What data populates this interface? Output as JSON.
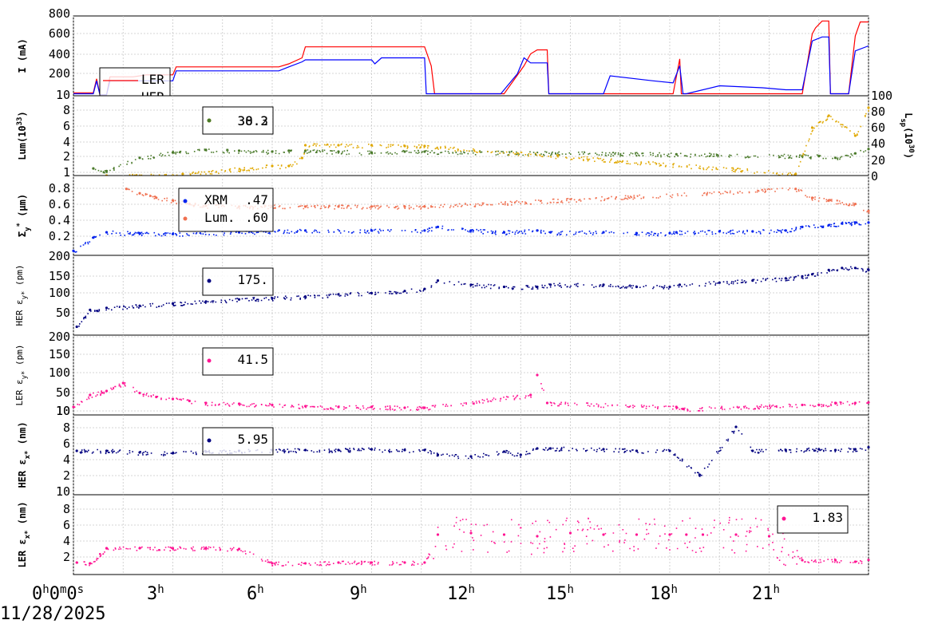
{
  "date_label": "11/28/2025",
  "x_tick_labels": [
    {
      "pre": "0",
      "sup": "h",
      "mid": "0",
      "sup2": "m",
      "mid2": "0",
      "sup3": "s"
    },
    {
      "pre": "3",
      "sup": "h"
    },
    {
      "pre": "6",
      "sup": "h"
    },
    {
      "pre": "9",
      "sup": "h"
    },
    {
      "pre": "12",
      "sup": "h"
    },
    {
      "pre": "15",
      "sup": "h"
    },
    {
      "pre": "18",
      "sup": "h"
    },
    {
      "pre": "21",
      "sup": "h"
    }
  ],
  "colors": {
    "ler": "#ff0000",
    "her": "#0000ff",
    "lum": "#4a7a2a",
    "lsp": "#e0a800",
    "xrm": "#0022ee",
    "lum_size": "#f07050",
    "her_emit": "#000080",
    "ler_emit": "#ff1493"
  },
  "panels": [
    {
      "id": "current",
      "ylabel": "I (mA)",
      "yticks": [
        "200",
        "400",
        "600",
        "800"
      ],
      "legend": [
        {
          "label": "LER",
          "color": "#ff0000"
        },
        {
          "label": "HER",
          "color": "#0000ff"
        }
      ]
    },
    {
      "id": "lum",
      "ylabel": "Lum(10",
      "ylabel_sup": "33",
      "ylabel_end": ")",
      "yticks": [
        "1",
        "2",
        "4",
        "6",
        "8",
        "10"
      ],
      "y2label": "L",
      "y2label_sub": "sp",
      "y2label_mid": "(10",
      "y2label_sup": "30",
      "y2label_end": ")",
      "y2ticks": [
        "0",
        "20",
        "40",
        "60",
        "80",
        "100"
      ],
      "legend": [
        {
          "label": "38.2",
          "color": "#e0a800"
        },
        {
          "label": "30.3",
          "color": "#4a7a2a"
        }
      ]
    },
    {
      "id": "size",
      "ylabel": "Σ",
      "ylabel_sub": "y",
      "ylabel_sup": "*",
      "ylabel_end": " (μm)",
      "yticks": [
        "0.2",
        "0.4",
        "0.6",
        "0.8"
      ],
      "legend": [
        {
          "label": "XRM",
          "value": ".47",
          "color": "#0022ee"
        },
        {
          "label": "Lum.",
          "value": ".60",
          "color": "#f07050"
        }
      ]
    },
    {
      "id": "her_ey",
      "ylabel": "HER ε",
      "ylabel_sub": "y*",
      "ylabel_end": " (pm)",
      "yticks": [
        "50",
        "100",
        "150",
        "200"
      ],
      "legend": [
        {
          "label": "175.",
          "color": "#000080"
        }
      ]
    },
    {
      "id": "ler_ey",
      "ylabel": "LER ε",
      "ylabel_sub": "y*",
      "ylabel_end": " (pm)",
      "yticks": [
        "10",
        "50",
        "100",
        "150",
        "200"
      ],
      "legend": [
        {
          "label": "41.5",
          "color": "#ff1493"
        }
      ]
    },
    {
      "id": "her_ex",
      "ylabel": "HER ε",
      "ylabel_sub": "x*",
      "ylabel_end": " (nm)",
      "yticks": [
        "2",
        "4",
        "6",
        "8",
        "10"
      ],
      "legend": [
        {
          "label": "5.95",
          "color": "#000080"
        }
      ]
    },
    {
      "id": "ler_ex",
      "ylabel": "LER ε",
      "ylabel_sub": "x*",
      "ylabel_end": " (nm)",
      "yticks": [
        "2",
        "4",
        "6",
        "8",
        "10"
      ],
      "legend": [
        {
          "label": "1.83",
          "color": "#ff1493"
        }
      ]
    }
  ],
  "chart_data": [
    {
      "type": "line",
      "title": "",
      "ylabel": "I (mA)",
      "x_unit": "hours",
      "xlim": [
        0,
        24
      ],
      "ylim": [
        0,
        800
      ],
      "series": [
        {
          "name": "LER",
          "color": "#ff0000",
          "x": [
            0,
            0.6,
            0.7,
            0.8,
            1.0,
            1.1,
            1.8,
            2.2,
            3.0,
            3.1,
            6.2,
            6.5,
            6.9,
            7.0,
            10.6,
            10.8,
            10.9,
            12.9,
            13.0,
            13.6,
            13.8,
            14.0,
            14.3,
            14.35,
            18.1,
            18.3,
            18.35,
            22.0,
            22.3,
            22.4,
            22.6,
            22.8,
            22.85,
            23.4,
            23.6,
            23.75,
            24
          ],
          "y": [
            30,
            30,
            170,
            10,
            10,
            190,
            190,
            210,
            210,
            290,
            290,
            320,
            380,
            490,
            490,
            300,
            20,
            20,
            20,
            300,
            420,
            460,
            460,
            20,
            20,
            370,
            20,
            20,
            620,
            680,
            750,
            750,
            20,
            20,
            600,
            740,
            740
          ]
        },
        {
          "name": "HER",
          "color": "#0000ff",
          "x": [
            0,
            0.6,
            0.7,
            0.8,
            1.0,
            1.1,
            3.0,
            3.1,
            6.2,
            6.5,
            6.9,
            7.0,
            9.0,
            9.1,
            9.3,
            10.6,
            10.65,
            12.9,
            13.4,
            13.6,
            13.8,
            14.3,
            14.35,
            16.0,
            16.2,
            17.5,
            18.1,
            18.3,
            18.4,
            18.5,
            19.5,
            20.8,
            21.5,
            22.0,
            22.3,
            22.6,
            22.8,
            22.85,
            23.4,
            23.6,
            24
          ],
          "y": [
            20,
            20,
            150,
            10,
            10,
            150,
            150,
            250,
            250,
            290,
            340,
            360,
            360,
            320,
            380,
            380,
            20,
            20,
            220,
            380,
            330,
            330,
            20,
            20,
            200,
            150,
            130,
            300,
            20,
            20,
            100,
            80,
            60,
            60,
            550,
            590,
            590,
            20,
            20,
            450,
            500
          ]
        }
      ]
    },
    {
      "type": "scatter",
      "title": "",
      "ylabel": "Lum(10^33)",
      "y2label": "Lsp(10^30)",
      "xlim": [
        0,
        24
      ],
      "ylim": [
        1,
        10
      ],
      "y2lim": [
        0,
        100
      ],
      "series": [
        {
          "name": "",
          "color": "#4a7a2a",
          "axis": "left",
          "x": [
            0.6,
            1.0,
            2.0,
            3.0,
            4.0,
            5.0,
            6.0,
            6.5,
            7.0,
            8.0,
            9.0,
            10.0,
            10.6,
            18.2,
            22.0,
            22.5,
            23.0,
            23.6,
            24
          ],
          "y": [
            1.8,
            1.5,
            3.0,
            3.6,
            3.9,
            3.8,
            3.7,
            3.8,
            3.8,
            3.7,
            3.6,
            3.7,
            3.7,
            3.4,
            3.2,
            3.2,
            3.0,
            3.5,
            4.0
          ]
        },
        {
          "name": "",
          "color": "#e0a800",
          "axis": "right",
          "x": [
            1.0,
            3.0,
            3.3,
            6.0,
            6.5,
            6.9,
            7.0,
            8.0,
            9.0,
            10.0,
            10.6,
            21.8,
            22.3,
            22.8,
            23.6,
            24
          ],
          "y": [
            0,
            0,
            2,
            12,
            12,
            22,
            38,
            38,
            38,
            37,
            37,
            2,
            60,
            75,
            50,
            85
          ]
        }
      ]
    },
    {
      "type": "scatter",
      "title": "",
      "ylabel": "Σy* (μm)",
      "xlim": [
        0,
        24
      ],
      "ylim": [
        0.1,
        1.0
      ],
      "series": [
        {
          "name": "XRM",
          "color": "#0022ee",
          "x": [
            0,
            0.6,
            1.0,
            2.0,
            3.0,
            5.0,
            7.0,
            9.0,
            10.6,
            11.0,
            12.0,
            13.0,
            14.0,
            14.4,
            16.0,
            17.0,
            18.0,
            18.2,
            19.5,
            20.5,
            21.5,
            22.0,
            22.8,
            23.2,
            23.6,
            24
          ],
          "y": [
            0.15,
            0.3,
            0.36,
            0.35,
            0.34,
            0.36,
            0.38,
            0.38,
            0.38,
            0.42,
            0.38,
            0.36,
            0.38,
            0.36,
            0.36,
            0.35,
            0.35,
            0.36,
            0.37,
            0.37,
            0.38,
            0.42,
            0.44,
            0.46,
            0.47,
            0.47
          ]
        },
        {
          "name": "Lum.",
          "color": "#f07050",
          "x": [
            1.6,
            2.0,
            2.5,
            3.0,
            3.5,
            4.0,
            5.0,
            6.0,
            7.0,
            8.0,
            9.0,
            10.0,
            10.6,
            21.8,
            22.3,
            22.8,
            23.6,
            24
          ],
          "y": [
            0.85,
            0.8,
            0.75,
            0.72,
            0.68,
            0.66,
            0.65,
            0.65,
            0.65,
            0.65,
            0.65,
            0.65,
            0.65,
            0.85,
            0.75,
            0.72,
            0.68,
            0.6
          ]
        }
      ]
    },
    {
      "type": "scatter",
      "title": "",
      "ylabel": "HER εy* (pm)",
      "xlim": [
        0,
        24
      ],
      "ylim": [
        20,
        210
      ],
      "series": [
        {
          "name": "",
          "color": "#000080",
          "x": [
            0.1,
            0.5,
            1.0,
            2.0,
            3.0,
            4.0,
            5.0,
            6.0,
            7.0,
            8.0,
            9.0,
            10.0,
            10.6,
            11.0,
            12.0,
            13.0,
            14.0,
            14.4,
            16.0,
            17.0,
            18.0,
            18.3,
            19.5,
            20.5,
            21.5,
            22.0,
            22.3,
            22.8,
            23.2,
            23.6,
            24
          ],
          "y": [
            40,
            80,
            85,
            90,
            95,
            100,
            105,
            108,
            112,
            117,
            120,
            125,
            130,
            150,
            140,
            135,
            135,
            140,
            140,
            135,
            135,
            140,
            145,
            150,
            155,
            160,
            165,
            175,
            180,
            180,
            175
          ]
        }
      ]
    },
    {
      "type": "scatter",
      "title": "",
      "ylabel": "LER εy* (pm)",
      "xlim": [
        0,
        24
      ],
      "ylim": [
        10,
        210
      ],
      "series": [
        {
          "name": "",
          "color": "#ff1493",
          "x": [
            0,
            0.5,
            1.0,
            1.5,
            2.0,
            2.5,
            3.0,
            3.5,
            4.0,
            5.0,
            6.0,
            7.0,
            8.0,
            9.0,
            10.0,
            10.6,
            13.8,
            14.0,
            14.3,
            18.2,
            18.4,
            22.0,
            22.5,
            23.0,
            23.6,
            24
          ],
          "y": [
            30,
            60,
            70,
            90,
            65,
            55,
            50,
            45,
            40,
            38,
            35,
            32,
            30,
            30,
            28,
            28,
            60,
            110,
            40,
            30,
            25,
            35,
            35,
            40,
            40,
            41.5
          ]
        }
      ]
    },
    {
      "type": "scatter",
      "title": "",
      "ylabel": "HER εx* (nm)",
      "xlim": [
        0,
        24
      ],
      "ylim": [
        0,
        10
      ],
      "series": [
        {
          "name": "",
          "color": "#000080",
          "x": [
            0.1,
            1.0,
            2.0,
            3.0,
            4.0,
            5.0,
            6.0,
            7.0,
            8.0,
            9.0,
            10.0,
            10.6,
            11.0,
            12.0,
            13.0,
            13.5,
            14.0,
            14.4,
            16.0,
            17.0,
            18.0,
            18.9,
            20.0,
            20.5,
            21.5,
            22.5,
            23.0,
            23.6,
            24
          ],
          "y": [
            5.5,
            5.5,
            5.3,
            5.2,
            5.4,
            5.5,
            5.6,
            5.6,
            5.6,
            5.7,
            5.6,
            5.6,
            5.0,
            4.8,
            5.4,
            5.0,
            5.8,
            5.8,
            5.7,
            5.5,
            5.5,
            2.5,
            8.5,
            5.5,
            5.6,
            5.7,
            5.6,
            5.7,
            5.95
          ]
        }
      ]
    },
    {
      "type": "scatter",
      "title": "",
      "ylabel": "LER εx* (nm)",
      "xlim": [
        0,
        24
      ],
      "ylim": [
        0,
        10
      ],
      "series": [
        {
          "name": "",
          "color": "#ff1493",
          "x": [
            0.1,
            0.5,
            1.0,
            2.0,
            3.0,
            4.0,
            5.0,
            6.0,
            7.0,
            8.0,
            9.0,
            10.0,
            10.6,
            11.0,
            12.0,
            13.0,
            14.0,
            15.0,
            16.0,
            17.0,
            18.0,
            18.5,
            19.0,
            20.0,
            21.0,
            22.0,
            23.0,
            23.6,
            24
          ],
          "y": [
            1.5,
            1.4,
            3.3,
            3.3,
            3.3,
            3.3,
            3.2,
            1.4,
            1.4,
            1.5,
            1.5,
            1.5,
            1.5,
            5.0,
            5.2,
            5.0,
            4.8,
            5.2,
            5.0,
            5.0,
            5.0,
            5.0,
            5.0,
            5.0,
            4.8,
            1.8,
            1.8,
            1.6,
            1.83
          ]
        }
      ]
    }
  ]
}
